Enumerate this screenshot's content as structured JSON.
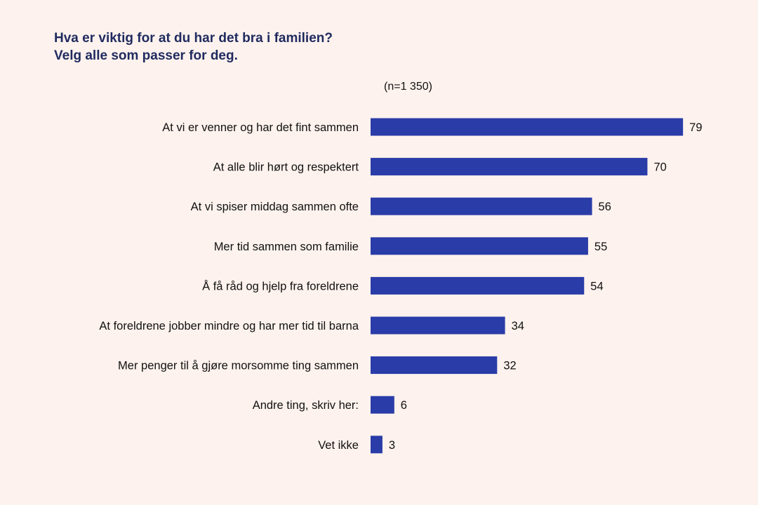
{
  "chart_data": {
    "type": "bar",
    "orientation": "horizontal",
    "title": "Hva er viktig for at du har det bra i familien?",
    "subtitle": "Velg alle som passer for deg.",
    "note": "(n=1 350)",
    "categories": [
      "At vi er venner og har det fint sammen",
      "At alle blir hørt og respektert",
      "At vi spiser middag sammen ofte",
      "Mer tid sammen som familie",
      "Å få råd og hjelp fra foreldrene",
      "At foreldrene jobber mindre og har mer tid til barna",
      "Mer penger til å gjøre morsomme ting sammen",
      "Andre ting, skriv her:",
      "Vet ikke"
    ],
    "values": [
      79,
      70,
      56,
      55,
      54,
      34,
      32,
      6,
      3
    ],
    "xlim": [
      0,
      100
    ],
    "grid": false,
    "colors": {
      "bar": "#2a3ca8",
      "title": "#1f2a5f",
      "background": "#fdf2ed"
    }
  }
}
